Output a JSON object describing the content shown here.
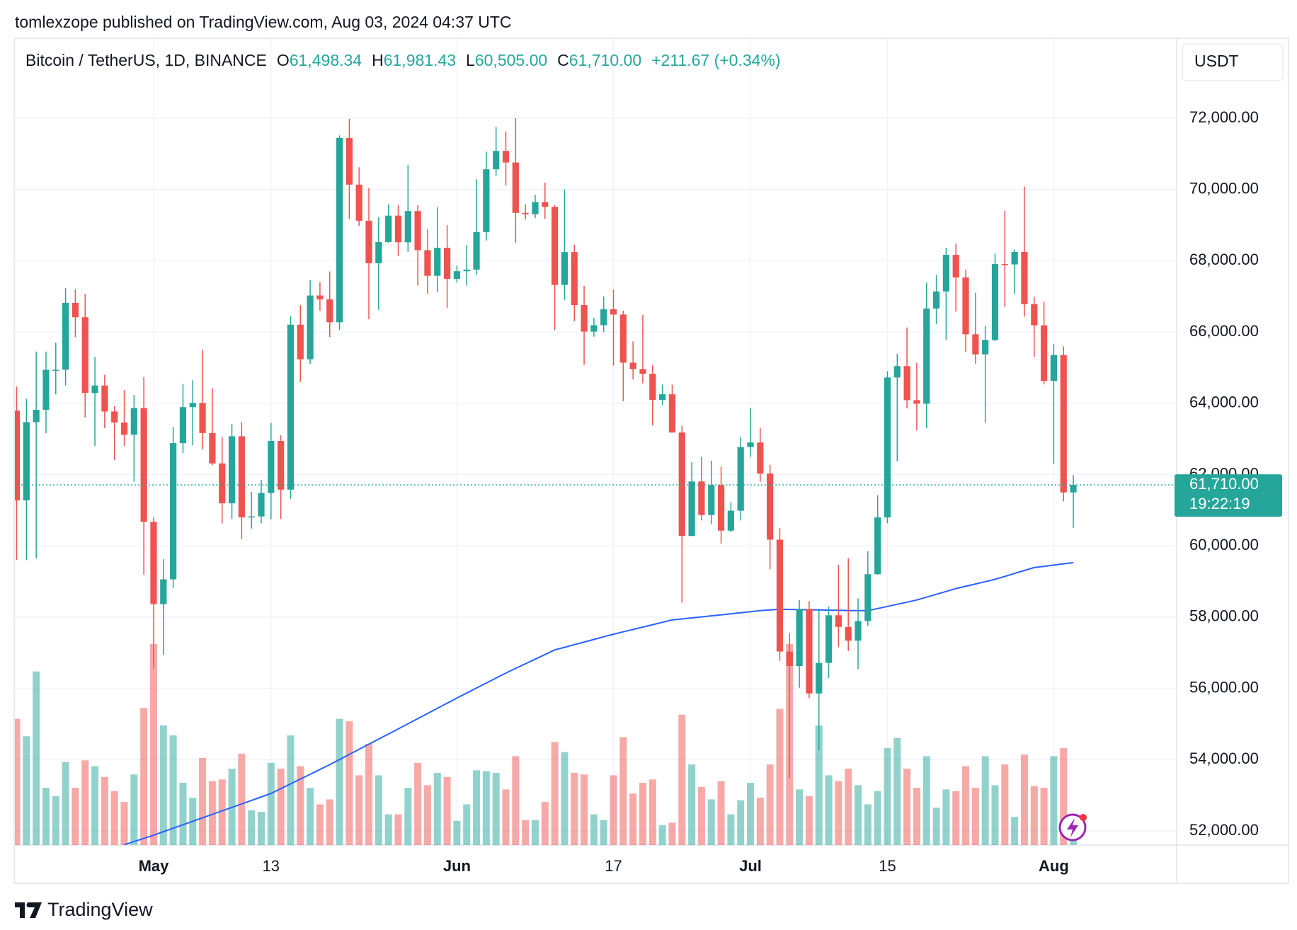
{
  "header": {
    "text": "tomlexzope published on TradingView.com, Aug 03, 2024 04:37 UTC"
  },
  "footer": {
    "brand": "TradingView"
  },
  "chart_data": {
    "type": "candlestick",
    "symbol": "Bitcoin / TetherUS, 1D, BINANCE",
    "legend": [
      {
        "key": "O",
        "text": "61,498.34"
      },
      {
        "key": "H",
        "text": "61,981.43"
      },
      {
        "key": "L",
        "text": "60,505.00"
      },
      {
        "key": "C",
        "text": "61,710.00"
      }
    ],
    "change": "+211.67 (+0.34%)",
    "currency": "USDT",
    "last_price": {
      "value": 61710,
      "label": "61,710.00"
    },
    "countdown": "19:22:19",
    "up_color": "#26a69a",
    "down_color": "#ef5350",
    "x": [
      "2024-04-17",
      "2024-04-18",
      "2024-04-19",
      "2024-04-20",
      "2024-04-21",
      "2024-04-22",
      "2024-04-23",
      "2024-04-24",
      "2024-04-25",
      "2024-04-26",
      "2024-04-27",
      "2024-04-28",
      "2024-04-29",
      "2024-04-30",
      "2024-05-01",
      "2024-05-02",
      "2024-05-03",
      "2024-05-04",
      "2024-05-05",
      "2024-05-06",
      "2024-05-07",
      "2024-05-08",
      "2024-05-09",
      "2024-05-10",
      "2024-05-11",
      "2024-05-12",
      "2024-05-13",
      "2024-05-14",
      "2024-05-15",
      "2024-05-16",
      "2024-05-17",
      "2024-05-18",
      "2024-05-19",
      "2024-05-20",
      "2024-05-21",
      "2024-05-22",
      "2024-05-23",
      "2024-05-24",
      "2024-05-25",
      "2024-05-26",
      "2024-05-27",
      "2024-05-28",
      "2024-05-29",
      "2024-05-30",
      "2024-05-31",
      "2024-06-01",
      "2024-06-02",
      "2024-06-03",
      "2024-06-04",
      "2024-06-05",
      "2024-06-06",
      "2024-06-07",
      "2024-06-08",
      "2024-06-09",
      "2024-06-10",
      "2024-06-11",
      "2024-06-12",
      "2024-06-13",
      "2024-06-14",
      "2024-06-15",
      "2024-06-16",
      "2024-06-17",
      "2024-06-18",
      "2024-06-19",
      "2024-06-20",
      "2024-06-21",
      "2024-06-22",
      "2024-06-23",
      "2024-06-24",
      "2024-06-25",
      "2024-06-26",
      "2024-06-27",
      "2024-06-28",
      "2024-06-29",
      "2024-06-30",
      "2024-07-01",
      "2024-07-02",
      "2024-07-03",
      "2024-07-04",
      "2024-07-05",
      "2024-07-06",
      "2024-07-07",
      "2024-07-08",
      "2024-07-09",
      "2024-07-10",
      "2024-07-11",
      "2024-07-12",
      "2024-07-13",
      "2024-07-14",
      "2024-07-15",
      "2024-07-16",
      "2024-07-17",
      "2024-07-18",
      "2024-07-19",
      "2024-07-20",
      "2024-07-21",
      "2024-07-22",
      "2024-07-23",
      "2024-07-24",
      "2024-07-25",
      "2024-07-26",
      "2024-07-27",
      "2024-07-28",
      "2024-07-29",
      "2024-07-30",
      "2024-07-31",
      "2024-08-01",
      "2024-08-02",
      "2024-08-03"
    ],
    "open": [
      63795,
      61275,
      63470,
      63818,
      64940,
      64941,
      66819,
      66414,
      64289,
      64498,
      63770,
      63461,
      63118,
      63866,
      60672,
      58364,
      59060,
      62882,
      63892,
      64012,
      63165,
      62312,
      61193,
      63074,
      60799,
      60825,
      61484,
      62943,
      61577,
      66206,
      65235,
      67024,
      66915,
      66274,
      71446,
      70136,
      69122,
      67929,
      68526,
      69265,
      68518,
      69394,
      68296,
      67578,
      68364,
      67491,
      67706,
      67751,
      68804,
      70567,
      71082,
      70757,
      69342,
      69305,
      69647,
      69512,
      67321,
      68243,
      66756,
      66011,
      66191,
      66639,
      66490,
      65140,
      64960,
      64828,
      64096,
      64252,
      63180,
      60277,
      61806,
      60864,
      61706,
      60427,
      60986,
      62772,
      62900,
      62029,
      60173,
      57033,
      56628,
      58230,
      55857,
      56714,
      58051,
      57725,
      57339,
      57889,
      59204,
      60797,
      64724,
      65043,
      64087,
      63987,
      66660,
      67139,
      68165,
      67532,
      65936,
      65372,
      65777,
      67907,
      67896,
      68249,
      66784,
      66188,
      64628,
      65354,
      61498.34
    ],
    "high": [
      64470,
      64125,
      65450,
      65450,
      65700,
      67230,
      67200,
      67075,
      65300,
      64800,
      63920,
      64370,
      64230,
      64734,
      60800,
      59625,
      63330,
      64544,
      64646,
      65500,
      64422,
      63050,
      63420,
      63470,
      61515,
      61850,
      63450,
      63100,
      66444,
      66752,
      67451,
      67400,
      67700,
      71515,
      71979,
      70623,
      70041,
      69220,
      69579,
      69562,
      70687,
      69560,
      68880,
      69500,
      69000,
      67860,
      68444,
      70288,
      71063,
      71758,
      71625,
      71997,
      69580,
      69850,
      70195,
      69563,
      69999,
      68450,
      67294,
      66400,
      66999,
      67188,
      66600,
      65738,
      66482,
      65066,
      64525,
      64520,
      63369,
      62350,
      62487,
      62389,
      62225,
      61224,
      63058,
      63861,
      63300,
      62272,
      60498,
      57546,
      58475,
      58449,
      58236,
      58296,
      59470,
      59650,
      58526,
      59850,
      61420,
      64900,
      65388,
      66128,
      65133,
      67386,
      67598,
      68366,
      68480,
      67750,
      67102,
      66175,
      68200,
      69399,
      68318,
      70079,
      66987,
      66849,
      65659,
      65596,
      61981.43
    ],
    "low": [
      59600,
      59600,
      59650,
      63160,
      64250,
      64500,
      65860,
      63600,
      62800,
      63300,
      62400,
      62800,
      61800,
      59190,
      56552,
      56937,
      58811,
      62600,
      62822,
      62700,
      62261,
      60630,
      60750,
      60187,
      60487,
      60630,
      60750,
      60750,
      61320,
      64602,
      65106,
      66600,
      65857,
      66060,
      69162,
      68977,
      66356,
      66622,
      68500,
      68128,
      68250,
      67300,
      67075,
      67118,
      66670,
      67387,
      67300,
      67612,
      68567,
      70383,
      70119,
      68500,
      69160,
      69200,
      69172,
      66051,
      66902,
      66304,
      65078,
      65870,
      66000,
      65056,
      64060,
      64666,
      64559,
      63379,
      63943,
      63178,
      58402,
      60272,
      60712,
      60606,
      60063,
      60383,
      60712,
      62497,
      61800,
      59343,
      56771,
      53485,
      56018,
      55724,
      54260,
      56289,
      57157,
      57050,
      56542,
      57756,
      59194,
      60632,
      62373,
      63854,
      63238,
      63300,
      66222,
      65777,
      66573,
      65441,
      65111,
      63456,
      65743,
      66705,
      67066,
      66428,
      65302,
      64530,
      62302,
      61248,
      60505
    ],
    "close": [
      61275,
      63470,
      63818,
      64940,
      64941,
      66819,
      66414,
      64289,
      64498,
      63770,
      63461,
      63118,
      63866,
      60672,
      58364,
      59060,
      62882,
      63892,
      64012,
      63165,
      62312,
      61193,
      63074,
      60799,
      60825,
      61484,
      62943,
      61577,
      66206,
      65235,
      67024,
      66915,
      66274,
      71446,
      70136,
      69122,
      67929,
      68526,
      69265,
      68518,
      69394,
      68296,
      67578,
      68364,
      67491,
      67706,
      67751,
      68804,
      70567,
      71082,
      70757,
      69342,
      69305,
      69647,
      69512,
      67321,
      68243,
      66756,
      66011,
      66191,
      66639,
      66490,
      65140,
      64960,
      64828,
      64096,
      64252,
      63180,
      60277,
      61806,
      60864,
      61706,
      60427,
      60986,
      62772,
      62900,
      62029,
      60173,
      57033,
      56628,
      58230,
      55857,
      56714,
      58051,
      57725,
      57339,
      57889,
      59204,
      60797,
      64724,
      65043,
      64087,
      63987,
      66660,
      67139,
      68165,
      67532,
      65936,
      65372,
      65777,
      67907,
      67896,
      68249,
      66784,
      66188,
      64628,
      65354,
      61498.34,
      61710
    ],
    "volume": [
      45600,
      39300,
      62700,
      20700,
      17700,
      30000,
      20700,
      30600,
      28500,
      24600,
      19500,
      15600,
      25500,
      49500,
      72600,
      43200,
      39600,
      22500,
      17100,
      31500,
      23100,
      23700,
      27600,
      33000,
      12600,
      12000,
      29700,
      27600,
      39600,
      28500,
      20700,
      14700,
      16500,
      45600,
      44700,
      25200,
      36600,
      25200,
      11100,
      11100,
      20700,
      29700,
      21600,
      26100,
      24600,
      8700,
      14700,
      27000,
      26700,
      26100,
      20100,
      32100,
      9000,
      9000,
      15600,
      37200,
      33600,
      26100,
      25500,
      11100,
      9000,
      25200,
      39000,
      18600,
      22500,
      23700,
      7200,
      8100,
      47100,
      29100,
      21000,
      16500,
      23100,
      11100,
      16200,
      22500,
      17100,
      29100,
      49200,
      72600,
      20100,
      17700,
      43200,
      25200,
      23100,
      27600,
      21600,
      14700,
      19500,
      35100,
      38700,
      27600,
      20700,
      32100,
      13500,
      20100,
      19500,
      28500,
      20700,
      32100,
      21600,
      29100,
      10200,
      32700,
      21300,
      20700,
      32100,
      35100,
      3600
    ],
    "ma": {
      "color": "#2962ff",
      "values": [
        null,
        null,
        null,
        null,
        null,
        null,
        null,
        null,
        null,
        null,
        null,
        51610,
        51700,
        51790,
        51880,
        51978,
        52075,
        52173,
        52270,
        52368,
        52465,
        52563,
        52660,
        52758,
        52855,
        52953,
        53050,
        53185,
        53320,
        53455,
        53590,
        53725,
        53860,
        54003,
        54147,
        54290,
        54433,
        54577,
        54720,
        54863,
        55007,
        55150,
        55295,
        55440,
        55585,
        55730,
        55870,
        56010,
        56150,
        56290,
        56430,
        56560,
        56690,
        56820,
        56950,
        57080,
        57153,
        57227,
        57300,
        57373,
        57447,
        57520,
        57587,
        57653,
        57720,
        57787,
        57853,
        57920,
        57949,
        57978,
        58007,
        58036,
        58064,
        58093,
        58122,
        58151,
        58180,
        58200,
        58220,
        58215,
        58210,
        58205,
        58200,
        58195,
        58190,
        58185,
        58182,
        58180,
        58240,
        58300,
        58360,
        58420,
        58480,
        58560,
        58640,
        58720,
        58800,
        58865,
        58930,
        58995,
        59060,
        59143,
        59225,
        59308,
        59390,
        59425,
        59460,
        59495,
        59530
      ]
    },
    "ylim": [
      51603,
      74244
    ],
    "yticks": [
      {
        "value": 52000,
        "label": "52,000.00"
      },
      {
        "value": 54000,
        "label": "54,000.00"
      },
      {
        "value": 56000,
        "label": "56,000.00"
      },
      {
        "value": 58000,
        "label": "58,000.00"
      },
      {
        "value": 60000,
        "label": "60,000.00"
      },
      {
        "value": 62000,
        "label": "62,000.00"
      },
      {
        "value": 64000,
        "label": "64,000.00"
      },
      {
        "value": 66000,
        "label": "66,000.00"
      },
      {
        "value": 68000,
        "label": "68,000.00"
      },
      {
        "value": 70000,
        "label": "70,000.00"
      },
      {
        "value": 72000,
        "label": "72,000.00"
      }
    ],
    "xticks": [
      {
        "value": "2024-05-01",
        "label": "May"
      },
      {
        "value": "2024-05-13",
        "label": "13"
      },
      {
        "value": "2024-06-01",
        "label": "Jun"
      },
      {
        "value": "2024-06-17",
        "label": "17"
      },
      {
        "value": "2024-07-01",
        "label": "Jul"
      },
      {
        "value": "2024-07-15",
        "label": "15"
      },
      {
        "value": "2024-08-01",
        "label": "Aug"
      }
    ],
    "grid": true
  }
}
